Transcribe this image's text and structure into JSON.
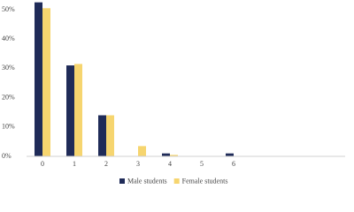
{
  "chart_data": {
    "type": "bar",
    "categories": [
      "0",
      "1",
      "2",
      "3",
      "4",
      "5",
      "6",
      null,
      null,
      null
    ],
    "series": [
      {
        "name": "Male students",
        "color": "#1f2b58",
        "values": [
          52.5,
          31,
          14,
          0,
          1,
          0,
          1,
          null,
          null,
          null
        ]
      },
      {
        "name": "Female students",
        "color": "#f6d56f",
        "values": [
          50.5,
          31.5,
          14,
          3.5,
          0.5,
          0,
          0,
          null,
          null,
          null
        ]
      }
    ],
    "ylim": [
      0,
      53
    ],
    "yticks": [
      {
        "value": 0,
        "label": "0%"
      },
      {
        "value": 10,
        "label": "10%"
      },
      {
        "value": 20,
        "label": "20%"
      },
      {
        "value": 30,
        "label": "30%"
      },
      {
        "value": 40,
        "label": "40%"
      },
      {
        "value": 50,
        "label": "50%"
      }
    ],
    "grid": false,
    "legend": "bottom"
  }
}
